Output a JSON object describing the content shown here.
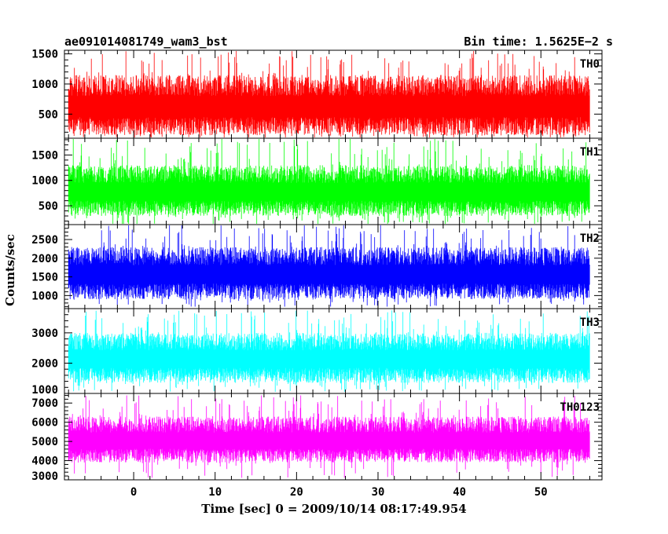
{
  "header": {
    "file_title": "ae091014081749_wam3_bst",
    "bin_time": "Bin time: 1.5625E−2 s"
  },
  "chart_data": {
    "type": "line",
    "ylabel": "Counts/sec",
    "xlabel": "Time [sec] 0 = 2009/10/14 08:17:49.954",
    "xlim": [
      -8.5,
      57.5
    ],
    "x_data_range": [
      -8,
      56
    ],
    "x_ticks": [
      0,
      10,
      20,
      30,
      40,
      50
    ],
    "panels": [
      {
        "name": "TH0",
        "color": "#ff0000",
        "ylim": [
          100,
          1560
        ],
        "yticks": [
          500,
          1000,
          1500
        ],
        "low": 150,
        "high": 1150,
        "spike_max": 1560,
        "dip_min": 100
      },
      {
        "name": "TH1",
        "color": "#00ff00",
        "ylim": [
          130,
          1830
        ],
        "yticks": [
          500,
          1000,
          1500
        ],
        "low": 300,
        "high": 1300,
        "spike_max": 1830,
        "dip_min": 130
      },
      {
        "name": "TH2",
        "color": "#0000ff",
        "ylim": [
          650,
          2900
        ],
        "yticks": [
          1000,
          1500,
          2000,
          2500
        ],
        "low": 900,
        "high": 2300,
        "spike_max": 2900,
        "dip_min": 700
      },
      {
        "name": "TH3",
        "color": "#00ffff",
        "ylim": [
          1000,
          3800
        ],
        "yticks": [
          1000,
          2000,
          3000
        ],
        "low": 1350,
        "high": 3000,
        "spike_max": 3750,
        "dip_min": 1050
      },
      {
        "name": "TH0123",
        "color": "#ff00ff",
        "ylim": [
          3000,
          7500
        ],
        "yticks": [
          3000,
          4000,
          5000,
          6000,
          7000
        ],
        "low": 3900,
        "high": 6300,
        "spike_max": 7400,
        "dip_min": 3100
      }
    ]
  }
}
